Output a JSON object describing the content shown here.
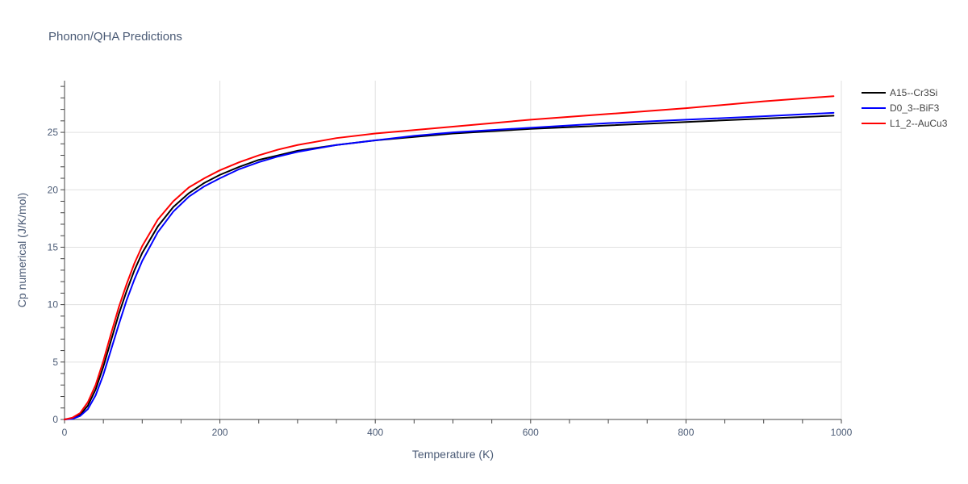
{
  "chart_data": {
    "type": "line",
    "title": "Phonon/QHA Predictions",
    "xlabel": "Temperature (K)",
    "ylabel": "Cp numerical (J/K/mol)",
    "xlim": [
      0,
      1000
    ],
    "ylim": [
      0,
      29.5
    ],
    "xticks": [
      0,
      200,
      400,
      600,
      800,
      1000
    ],
    "yticks": [
      0,
      5,
      10,
      15,
      20,
      25
    ],
    "grid": true,
    "legend_position": "top-right",
    "series": [
      {
        "name": "A15--Cr3Si",
        "color": "#000000",
        "x": [
          0,
          10,
          20,
          30,
          40,
          50,
          60,
          70,
          80,
          90,
          100,
          120,
          140,
          160,
          180,
          200,
          225,
          250,
          275,
          300,
          350,
          400,
          450,
          500,
          600,
          700,
          800,
          900,
          990
        ],
        "y": [
          0,
          0.1,
          0.4,
          1.2,
          2.6,
          4.6,
          6.9,
          9.2,
          11.2,
          13.0,
          14.5,
          16.8,
          18.5,
          19.7,
          20.6,
          21.3,
          22.0,
          22.6,
          23.0,
          23.4,
          23.9,
          24.3,
          24.6,
          24.9,
          25.3,
          25.6,
          25.9,
          26.2,
          26.45
        ]
      },
      {
        "name": "D0_3--BiF3",
        "color": "#0000ff",
        "x": [
          0,
          10,
          20,
          30,
          40,
          50,
          60,
          70,
          80,
          90,
          100,
          120,
          140,
          160,
          180,
          200,
          225,
          250,
          275,
          300,
          350,
          400,
          450,
          500,
          600,
          700,
          800,
          900,
          990
        ],
        "y": [
          0,
          0.05,
          0.3,
          0.9,
          2.1,
          3.9,
          6.1,
          8.3,
          10.4,
          12.2,
          13.8,
          16.3,
          18.1,
          19.4,
          20.3,
          21.0,
          21.8,
          22.4,
          22.9,
          23.3,
          23.9,
          24.3,
          24.7,
          25.0,
          25.4,
          25.8,
          26.1,
          26.4,
          26.7
        ]
      },
      {
        "name": "L1_2--AuCu3",
        "color": "#ff0000",
        "x": [
          0,
          10,
          20,
          30,
          40,
          50,
          60,
          70,
          80,
          90,
          100,
          120,
          140,
          160,
          180,
          200,
          225,
          250,
          275,
          300,
          350,
          400,
          450,
          500,
          600,
          700,
          800,
          900,
          990
        ],
        "y": [
          0,
          0.15,
          0.55,
          1.5,
          3.0,
          5.1,
          7.5,
          9.8,
          11.8,
          13.6,
          15.1,
          17.4,
          19.0,
          20.2,
          21.0,
          21.7,
          22.4,
          23.0,
          23.5,
          23.9,
          24.5,
          24.9,
          25.2,
          25.5,
          26.1,
          26.6,
          27.1,
          27.7,
          28.15
        ]
      }
    ]
  }
}
